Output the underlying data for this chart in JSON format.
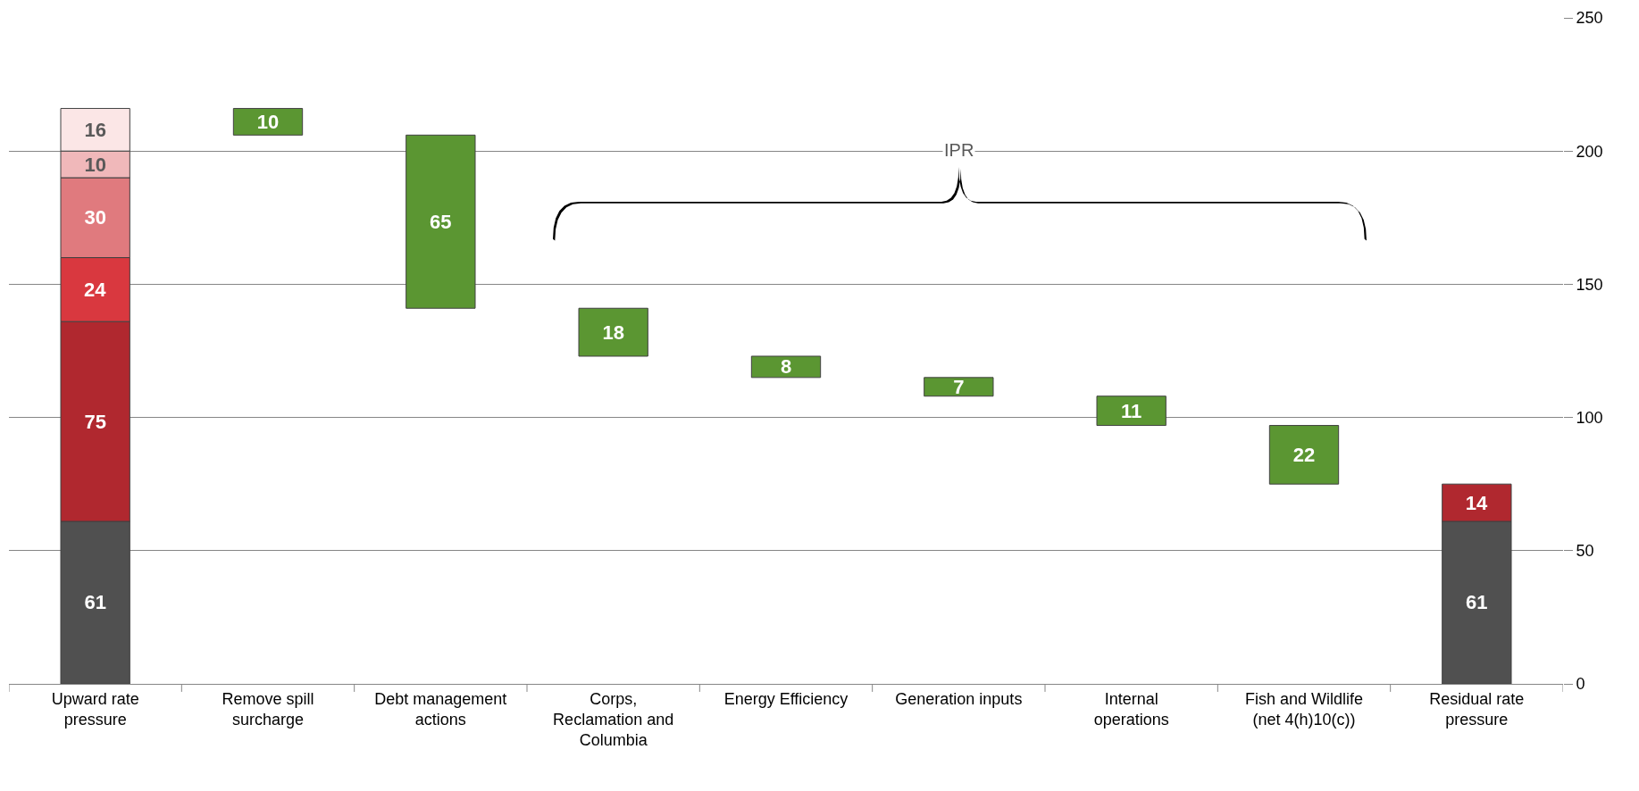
{
  "chart_data": {
    "type": "bar",
    "stacked": true,
    "categories": [
      "Upward rate pressure",
      "Remove spill surcharge",
      "Debt management actions",
      "Corps, Reclamation and Columbia",
      "Energy Efficiency",
      "Generation inputs",
      "Internal operations",
      "Fish and Wildlife (net 4(h)10(c))",
      "Residual rate pressure"
    ],
    "series": [
      {
        "color": "#505050",
        "values": [
          61,
          null,
          null,
          null,
          null,
          null,
          null,
          null,
          61
        ]
      },
      {
        "color": "#b0282f",
        "values": [
          75,
          null,
          null,
          null,
          null,
          null,
          null,
          null,
          14
        ]
      },
      {
        "color": "#d9383f",
        "values": [
          24,
          null,
          null,
          null,
          null,
          null,
          null,
          null,
          null
        ]
      },
      {
        "color": "#e07a7e",
        "values": [
          30,
          null,
          null,
          null,
          null,
          null,
          null,
          null,
          null
        ]
      },
      {
        "color": "#f0b8ba",
        "values": [
          10,
          null,
          null,
          null,
          null,
          null,
          null,
          null,
          null
        ]
      },
      {
        "color": "#fbe6e6",
        "values": [
          16,
          null,
          null,
          null,
          null,
          null,
          null,
          null,
          null
        ]
      },
      {
        "color": "#5b9632",
        "values": [
          null,
          10,
          65,
          18,
          8,
          7,
          11,
          22,
          null
        ],
        "base": [
          null,
          206,
          141,
          123,
          115,
          108,
          97,
          75,
          null
        ]
      }
    ],
    "ylim": [
      0,
      250
    ],
    "yticks": [
      0,
      50,
      100,
      150,
      200,
      250
    ],
    "grid": "y",
    "data_labels": true,
    "annotations": [
      "IPR"
    ]
  }
}
